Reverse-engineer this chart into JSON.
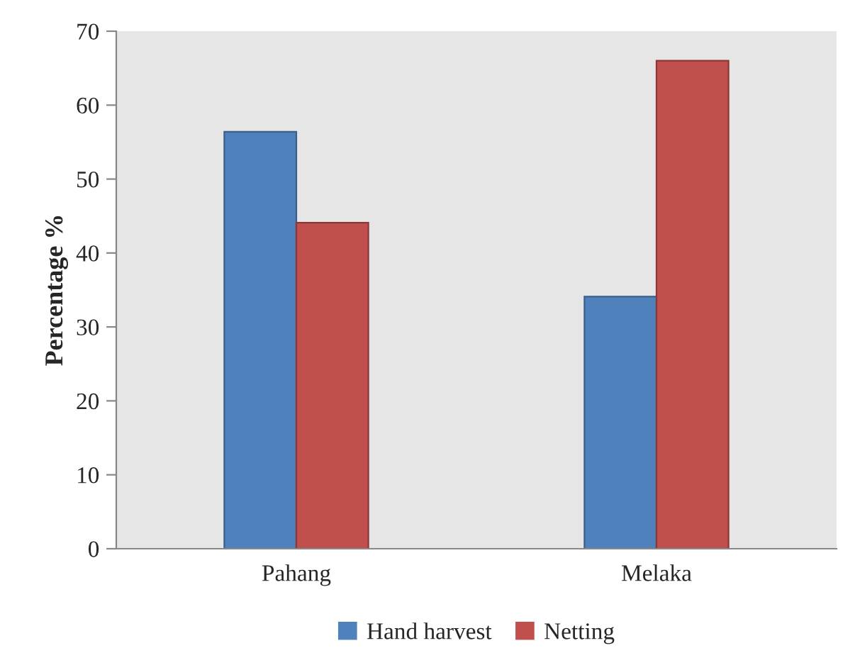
{
  "chart_data": {
    "type": "bar",
    "ylabel": "Percentage %",
    "categories": [
      "Pahang",
      "Melaka"
    ],
    "series": [
      {
        "name": "Hand harvest",
        "color": "#4f81bd",
        "values": [
          56.4,
          34.1
        ]
      },
      {
        "name": "Netting",
        "color": "#c0504d",
        "values": [
          44.1,
          66.0
        ]
      }
    ],
    "ylim": [
      0,
      70
    ],
    "yticks": [
      0,
      10,
      20,
      30,
      40,
      50,
      60,
      70
    ],
    "grid": false,
    "legend": "bottom"
  }
}
